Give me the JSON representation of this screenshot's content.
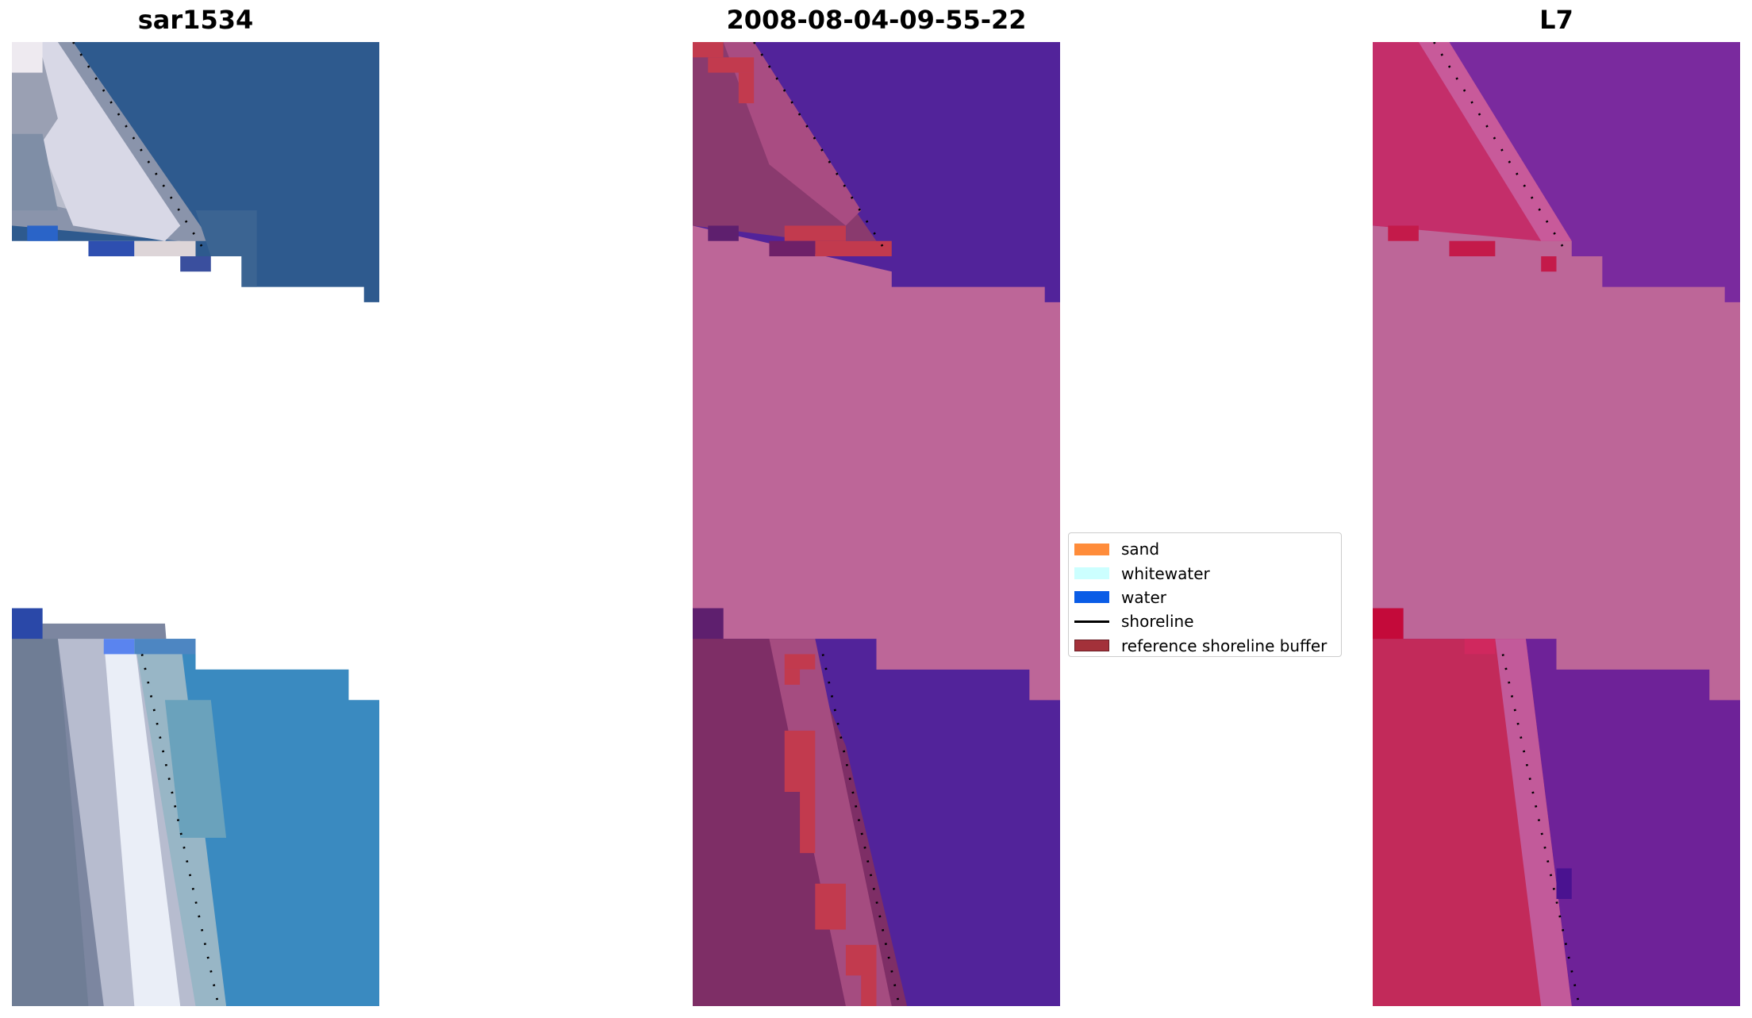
{
  "panels": [
    {
      "title": "sar1534"
    },
    {
      "title": "2008-08-04-09-55-22"
    },
    {
      "title": "L7"
    }
  ],
  "legend": {
    "items": [
      {
        "label": "sand",
        "color": "#ff8c3a",
        "kind": "patch"
      },
      {
        "label": "whitewater",
        "color": "#ccffff",
        "kind": "patch"
      },
      {
        "label": "water",
        "color": "#0a5ce6",
        "kind": "patch"
      },
      {
        "label": "shoreline",
        "color": "#000000",
        "kind": "line"
      },
      {
        "label": "reference shoreline buffer",
        "color": "#a3313a",
        "kind": "patch"
      }
    ]
  },
  "colors": {
    "nodata_pink": "#bd6698",
    "rgb_water": "#2e5a8e",
    "rgb_water_south": "#3a8ac0",
    "rgb_sand": "#d8d8e6",
    "class_water": "#52239a",
    "class_land": "#8a3a6e",
    "class_buffer": "#c23a4e",
    "l7_water": "#7a2a9e",
    "l7_land": "#c8285a"
  }
}
